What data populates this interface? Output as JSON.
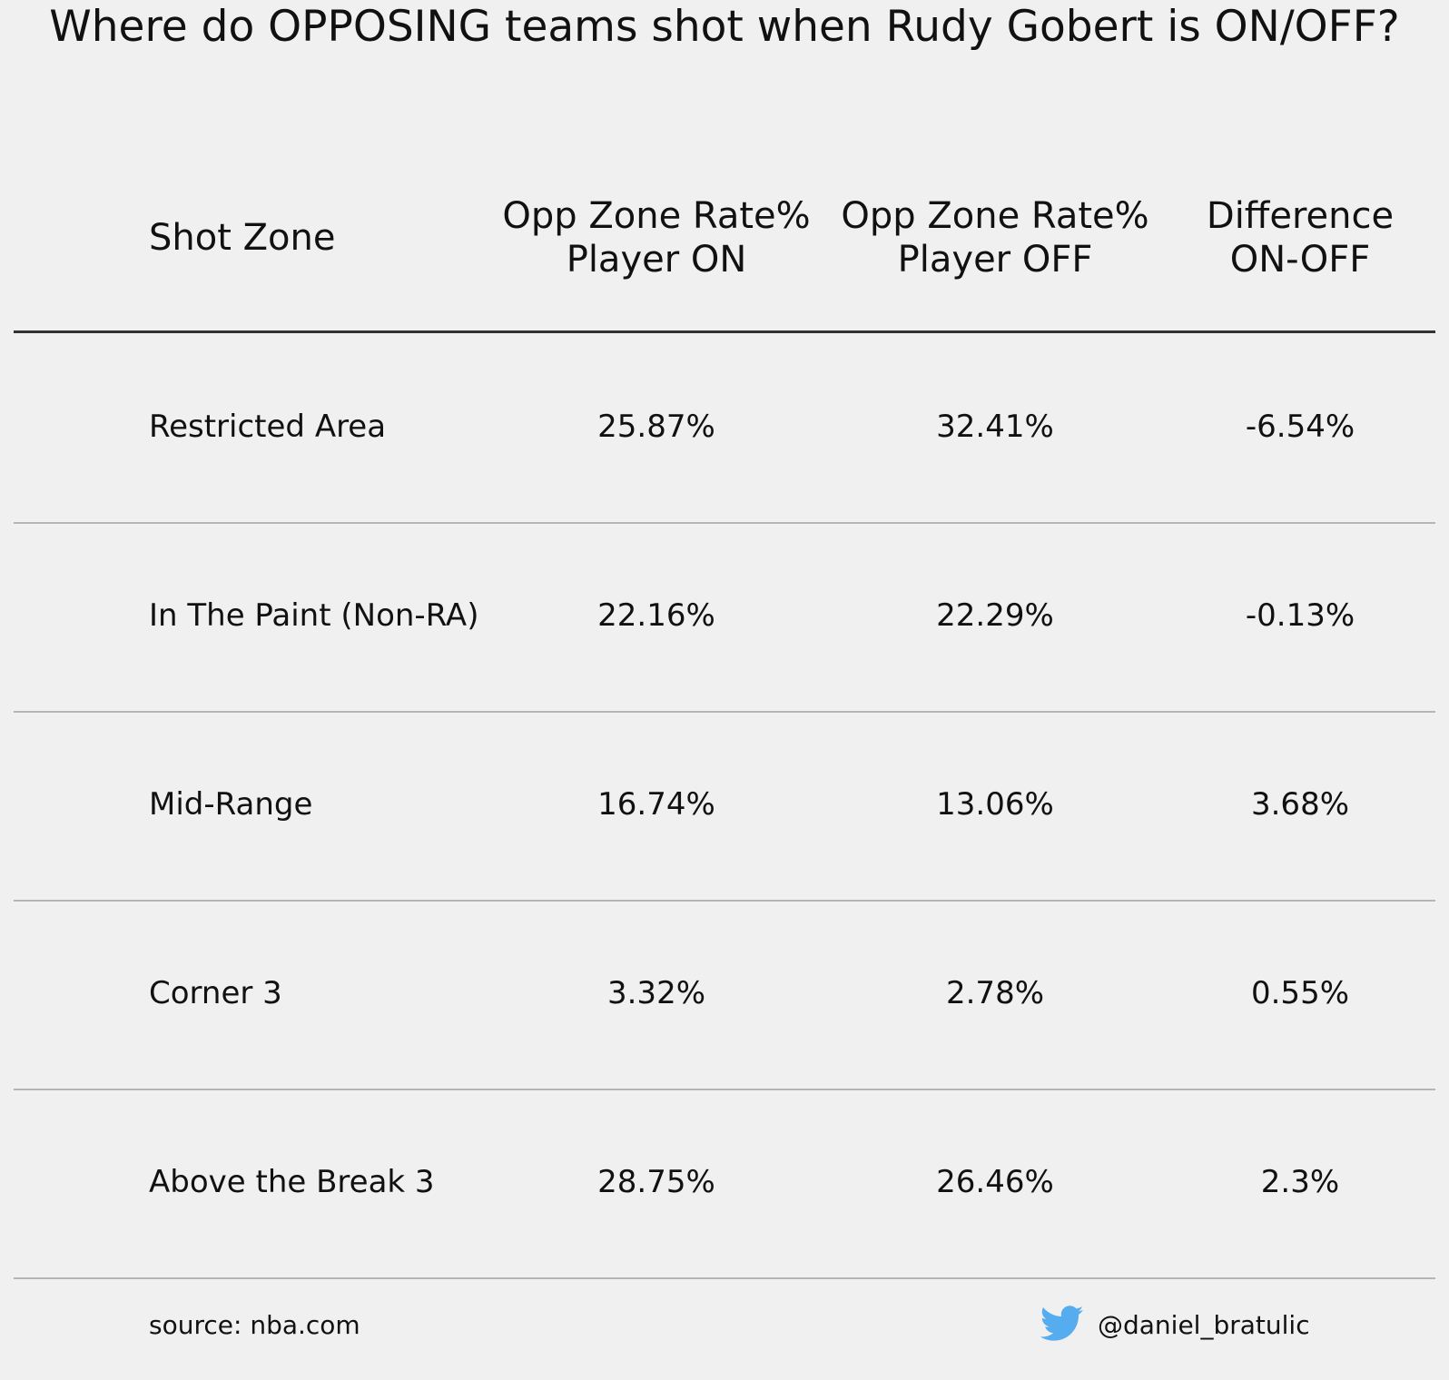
{
  "colors": {
    "background": "#f0f0f0",
    "text": "#111111",
    "header_rule": "#333333",
    "row_rule": "#b5b5b5",
    "twitter_blue": "#55acee"
  },
  "chart_data": {
    "type": "table",
    "title": "Where do OPPOSING teams shot when Rudy Gobert is ON/OFF?",
    "columns": [
      {
        "lines": [
          "Shot Zone"
        ]
      },
      {
        "lines": [
          "Opp Zone Rate%",
          "Player ON"
        ]
      },
      {
        "lines": [
          "Opp Zone Rate%",
          "Player OFF"
        ]
      },
      {
        "lines": [
          "Difference",
          "ON-OFF"
        ]
      }
    ],
    "rows": [
      {
        "zone": "Restricted Area",
        "on": "25.87%",
        "off": "32.41%",
        "diff": "-6.54%"
      },
      {
        "zone": "In The Paint (Non-RA)",
        "on": "22.16%",
        "off": "22.29%",
        "diff": "-0.13%"
      },
      {
        "zone": "Mid-Range",
        "on": "16.74%",
        "off": "13.06%",
        "diff": "3.68%"
      },
      {
        "zone": "Corner 3",
        "on": "3.32%",
        "off": "2.78%",
        "diff": "0.55%"
      },
      {
        "zone": "Above the Break 3",
        "on": "28.75%",
        "off": "26.46%",
        "diff": "2.3%"
      }
    ]
  },
  "footer": {
    "source": "source: nba.com",
    "icon": "twitter-bird-icon",
    "handle": "@daniel_bratulic"
  }
}
